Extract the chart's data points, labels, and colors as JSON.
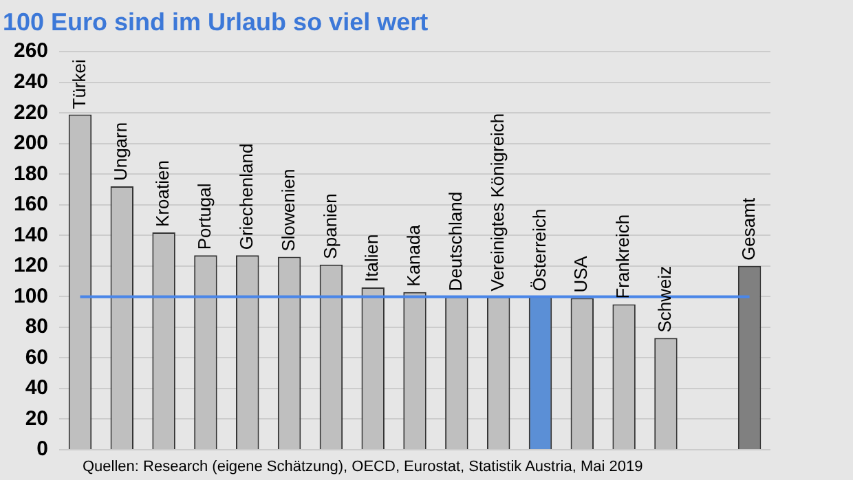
{
  "chart_data": {
    "type": "bar",
    "title": "100 Euro sind im Urlaub so viel wert",
    "categories": [
      "Türkei",
      "Ungarn",
      "Kroatien",
      "Portugal",
      "Griechenland",
      "Slowenien",
      "Spanien",
      "Italien",
      "Kanada",
      "Deutschland",
      "Vereinigtes Königreich",
      "Österreich",
      "USA",
      "Frankreich",
      "Schweiz",
      null,
      "Gesamt"
    ],
    "series": [
      {
        "type": "bar",
        "values": [
          219,
          172,
          142,
          127,
          127,
          126,
          121,
          106,
          103,
          100,
          100,
          100,
          99,
          95,
          73,
          null,
          120
        ],
        "colors": [
          "#bfbfbf",
          "#bfbfbf",
          "#bfbfbf",
          "#bfbfbf",
          "#bfbfbf",
          "#bfbfbf",
          "#bfbfbf",
          "#bfbfbf",
          "#bfbfbf",
          "#bfbfbf",
          "#bfbfbf",
          "#5b8fd6",
          "#bfbfbf",
          "#bfbfbf",
          "#bfbfbf",
          "#bfbfbf",
          "#808080"
        ]
      },
      {
        "type": "line",
        "color": "#4a86e8",
        "values": [
          100,
          100,
          100,
          100,
          100,
          100,
          100,
          100,
          100,
          100,
          100,
          100,
          100,
          100,
          100,
          100,
          100
        ]
      }
    ],
    "ylim": [
      0,
      260
    ],
    "yticks": [
      0,
      20,
      40,
      60,
      80,
      100,
      120,
      140,
      160,
      180,
      200,
      220,
      240,
      260
    ],
    "grid": "y",
    "legend": false,
    "marker": "none",
    "annotations": [
      "Quellen: Research (eigene Schätzung), OECD, Eurostat, Statistik Austria, Mai 2019"
    ]
  }
}
